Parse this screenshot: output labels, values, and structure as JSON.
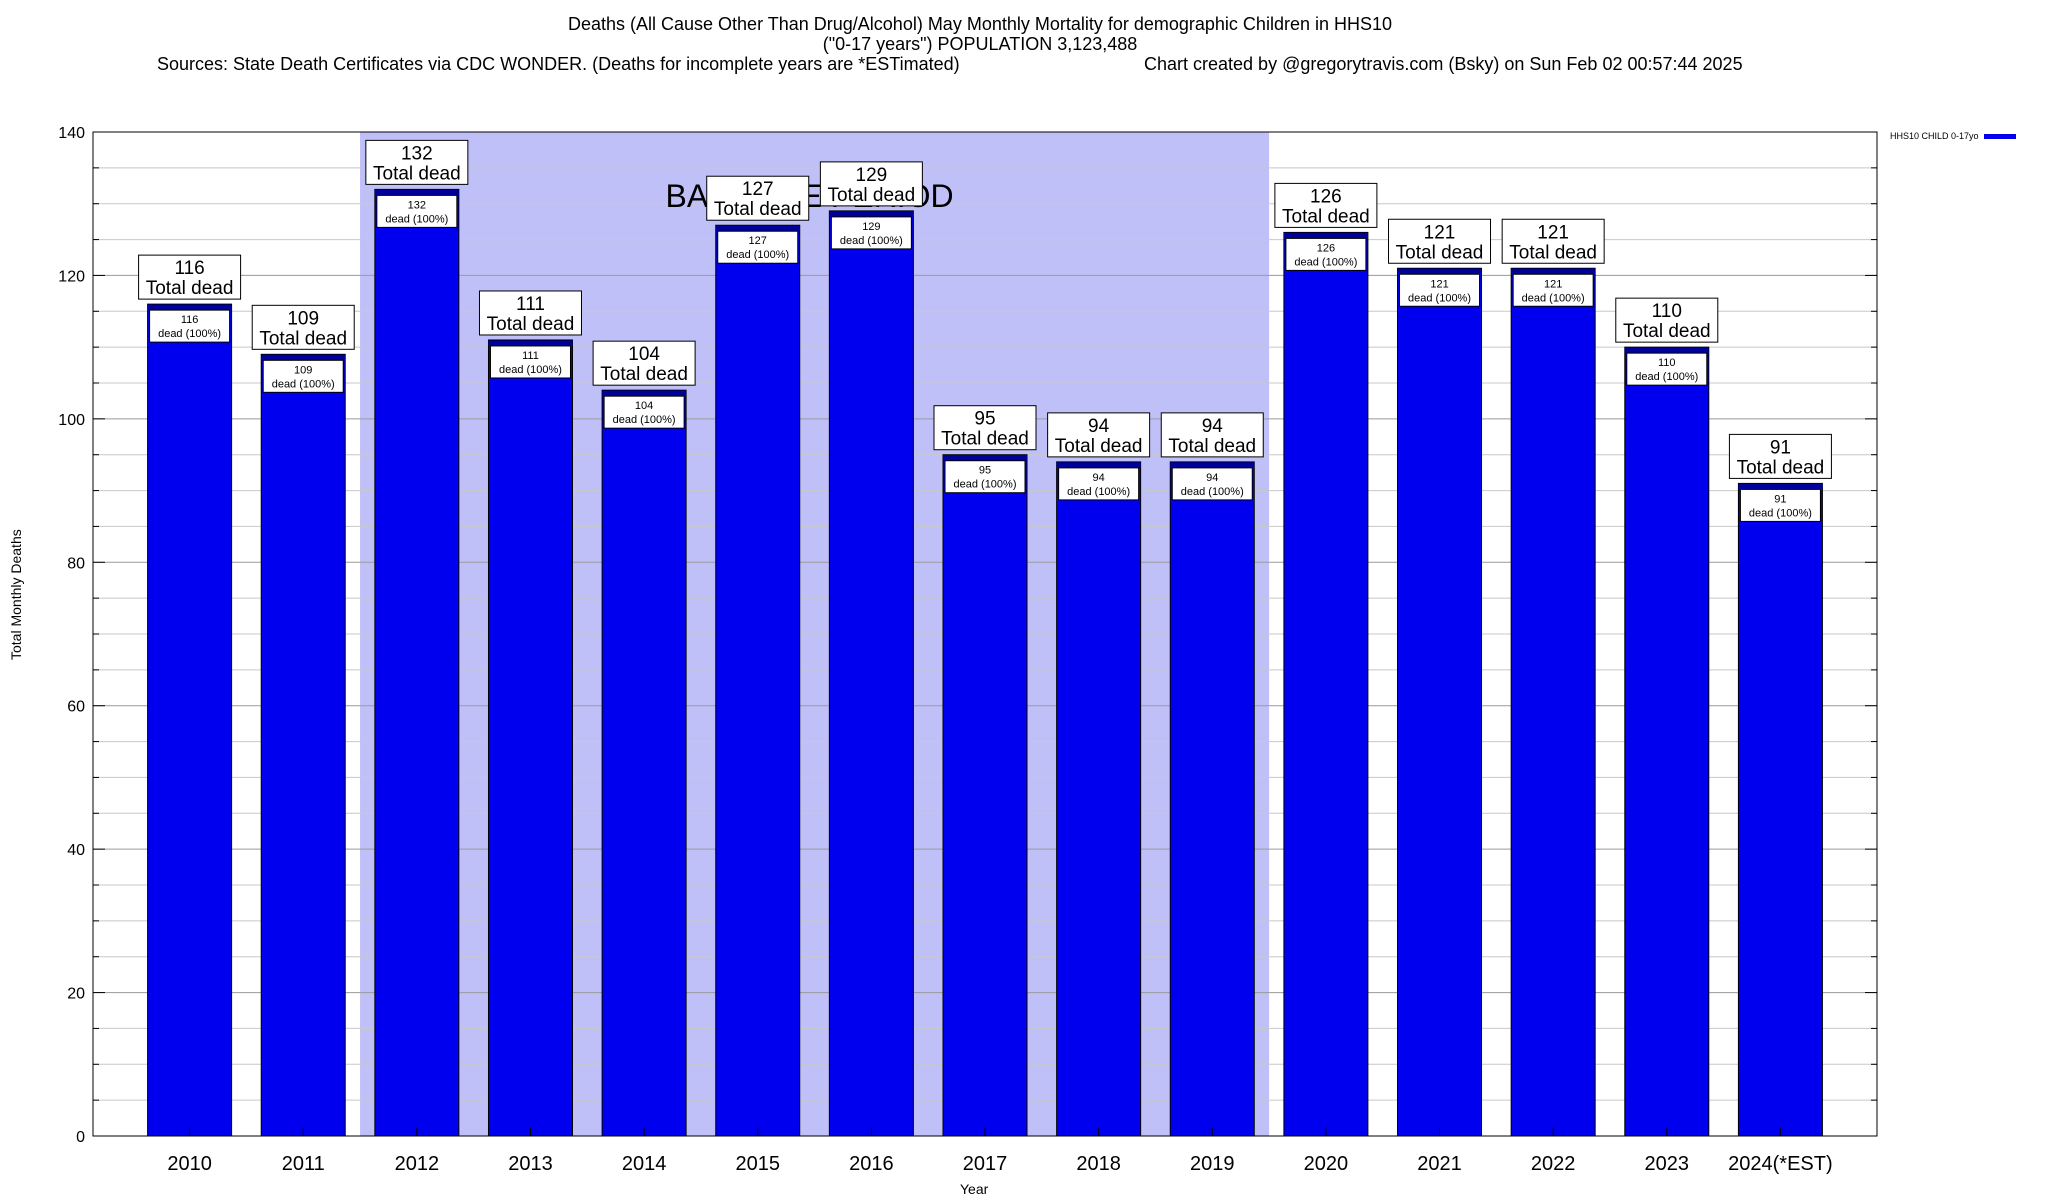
{
  "header": {
    "title_line1": "Deaths (All Cause Other Than Drug/Alcohol) May Monthly Mortality for demographic Children in HHS10",
    "title_line2": "(\"0-17 years\") POPULATION 3,123,488",
    "sources": "Sources: State Death Certificates via CDC WONDER. (Deaths for incomplete years are *ESTimated)",
    "credit": "Chart created by @gregorytravis.com (Bsky) on Sun Feb 02 00:57:44 2025"
  },
  "legend": {
    "label": "HHS10 CHILD 0-17yo",
    "color": "#0000ee"
  },
  "chart_data": {
    "type": "bar",
    "title": "Deaths (All Cause Other Than Drug/Alcohol) May Monthly Mortality for demographic Children in HHS10",
    "xlabel": "Year",
    "ylabel": "Total Monthly Deaths",
    "ylim": [
      0,
      140
    ],
    "yticks": [
      0,
      20,
      40,
      60,
      80,
      100,
      120,
      140
    ],
    "grid": true,
    "legend_position": "top-right",
    "categories": [
      "2010",
      "2011",
      "2012",
      "2013",
      "2014",
      "2015",
      "2016",
      "2017",
      "2018",
      "2019",
      "2020",
      "2021",
      "2022",
      "2023",
      "2024(*EST)"
    ],
    "series": [
      {
        "name": "HHS10 CHILD 0-17yo",
        "color": "#0000ee",
        "values": [
          116,
          109,
          132,
          111,
          104,
          127,
          129,
          95,
          94,
          94,
          126,
          121,
          121,
          110,
          91
        ]
      }
    ],
    "top_label_suffix": "Total dead",
    "inner_label_suffix": "dead (100%)",
    "baseline_period": {
      "label": "BASELINE PERIOD",
      "from": "2012",
      "to": "2019",
      "color": "#c0c0f8"
    }
  }
}
